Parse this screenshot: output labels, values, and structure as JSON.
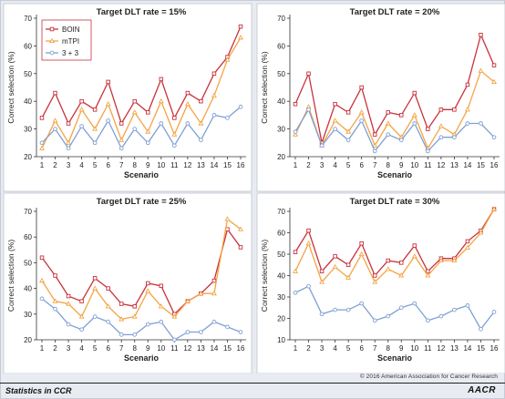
{
  "colors": {
    "boin": "#c8323c",
    "mtpi": "#f4a444",
    "three_plus_three": "#7fa0d4",
    "panel_bg": "#ffffff",
    "page_bg": "#e8ebf1"
  },
  "legend": {
    "placement": "top-left of first panel",
    "entries": [
      "BOIN",
      "mTPI",
      "3 + 3"
    ]
  },
  "footer": {
    "left": "Statistics in CCR",
    "right": "AACR",
    "copyright": "© 2016 American Association for Cancer Research"
  },
  "chart_data": [
    {
      "type": "line",
      "title": "Target DLT rate = 15%",
      "xlabel": "Scenario",
      "ylabel": "Correct selection (%)",
      "ylim": [
        20,
        70
      ],
      "yticks": [
        20,
        30,
        40,
        50,
        60,
        70
      ],
      "x": [
        1,
        2,
        3,
        4,
        5,
        6,
        7,
        8,
        9,
        10,
        11,
        12,
        13,
        14,
        15,
        16
      ],
      "series": [
        {
          "name": "BOIN",
          "values": [
            34,
            43,
            32,
            40,
            37,
            47,
            32,
            40,
            36,
            48,
            34,
            43,
            40,
            50,
            56,
            67
          ]
        },
        {
          "name": "mTPI",
          "values": [
            23,
            33,
            25,
            37,
            30,
            39,
            26,
            36,
            29,
            40,
            28,
            39,
            32,
            42,
            55,
            63
          ]
        },
        {
          "name": "3 + 3",
          "values": [
            25,
            30,
            23,
            31,
            25,
            33,
            23,
            30,
            25,
            32,
            24,
            32,
            26,
            35,
            34,
            38
          ]
        }
      ]
    },
    {
      "type": "line",
      "title": "Target DLT rate = 20%",
      "xlabel": "Scenario",
      "ylabel": "Correct selection (%)",
      "ylim": [
        20,
        70
      ],
      "yticks": [
        20,
        30,
        40,
        50,
        60,
        70
      ],
      "x": [
        1,
        2,
        3,
        4,
        5,
        6,
        7,
        8,
        9,
        10,
        11,
        12,
        13,
        14,
        15,
        16
      ],
      "series": [
        {
          "name": "BOIN",
          "values": [
            39,
            50,
            25,
            39,
            36,
            45,
            28,
            36,
            35,
            43,
            30,
            37,
            37,
            46,
            64,
            53
          ]
        },
        {
          "name": "mTPI",
          "values": [
            28,
            38,
            24,
            33,
            29,
            36,
            24,
            32,
            27,
            35,
            23,
            31,
            28,
            37,
            51,
            47
          ]
        },
        {
          "name": "3 + 3",
          "values": [
            29,
            37,
            24,
            30,
            26,
            33,
            22,
            28,
            26,
            32,
            22,
            27,
            27,
            32,
            32,
            27
          ]
        }
      ]
    },
    {
      "type": "line",
      "title": "Target DLT rate = 25%",
      "xlabel": "Scenario",
      "ylabel": "Correct selection (%)",
      "ylim": [
        20,
        70
      ],
      "yticks": [
        20,
        30,
        40,
        50,
        60,
        70
      ],
      "x": [
        1,
        2,
        3,
        4,
        5,
        6,
        7,
        8,
        9,
        10,
        11,
        12,
        13,
        14,
        15,
        16
      ],
      "series": [
        {
          "name": "BOIN",
          "values": [
            52,
            45,
            37,
            35,
            44,
            40,
            34,
            33,
            42,
            41,
            30,
            35,
            38,
            43,
            63,
            56
          ]
        },
        {
          "name": "mTPI",
          "values": [
            43,
            35,
            34,
            29,
            40,
            33,
            28,
            29,
            39,
            33,
            29,
            35,
            38,
            38,
            67,
            63
          ]
        },
        {
          "name": "3 + 3",
          "values": [
            36,
            32,
            26,
            24,
            29,
            27,
            22,
            22,
            26,
            27,
            20,
            23,
            23,
            27,
            25,
            23
          ]
        }
      ]
    },
    {
      "type": "line",
      "title": "Target DLT rate = 30%",
      "xlabel": "Scenario",
      "ylabel": "Correct selection (%)",
      "ylim": [
        10,
        70
      ],
      "yticks": [
        10,
        20,
        30,
        40,
        50,
        60,
        70
      ],
      "x": [
        1,
        2,
        3,
        4,
        5,
        6,
        7,
        8,
        9,
        10,
        11,
        12,
        13,
        14,
        15,
        16
      ],
      "series": [
        {
          "name": "BOIN",
          "values": [
            51,
            61,
            42,
            49,
            45,
            55,
            40,
            47,
            46,
            54,
            42,
            48,
            48,
            56,
            61,
            71
          ]
        },
        {
          "name": "mTPI",
          "values": [
            42,
            55,
            37,
            44,
            39,
            50,
            37,
            43,
            40,
            49,
            40,
            47,
            47,
            53,
            60,
            71
          ]
        },
        {
          "name": "3 + 3",
          "values": [
            32,
            35,
            22,
            24,
            24,
            27,
            19,
            21,
            25,
            27,
            19,
            21,
            24,
            26,
            15,
            23
          ]
        }
      ]
    }
  ]
}
